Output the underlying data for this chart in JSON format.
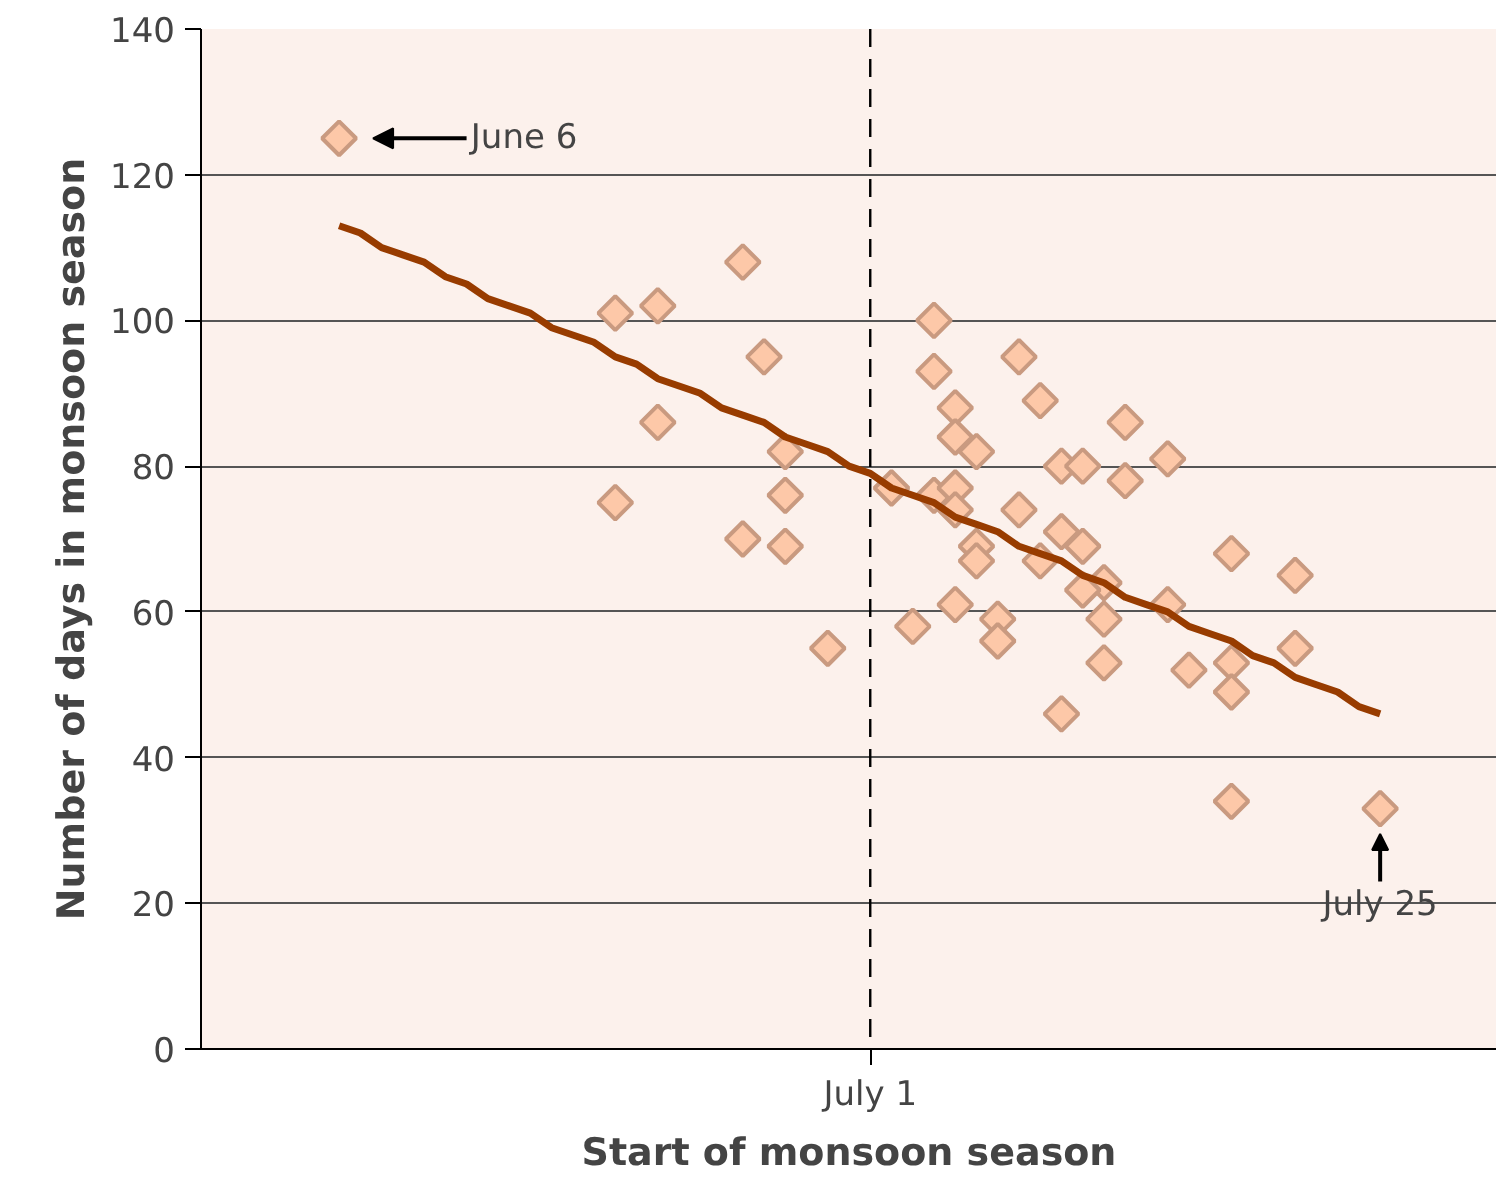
{
  "chart_data": {
    "type": "scatter",
    "xlabel": "Start of monsoon season",
    "ylabel": "Number of days in monsoon season",
    "categories": [
      null,
      null,
      null,
      null,
      null,
      null,
      null,
      null,
      null,
      null,
      null,
      null,
      null,
      null,
      null,
      null,
      null,
      null,
      null,
      null,
      null,
      null,
      null,
      null,
      null,
      null,
      null,
      null,
      null,
      null,
      null,
      "July 1",
      null,
      null,
      null,
      null,
      null,
      null,
      null,
      null,
      null,
      null,
      null,
      null,
      null,
      null,
      null,
      null,
      null,
      null,
      null,
      null,
      null,
      null,
      null,
      null,
      null,
      null,
      null,
      null,
      null
    ],
    "ylim": [
      0,
      140
    ],
    "yticks": [
      0,
      20,
      40,
      60,
      80,
      100,
      120,
      140
    ],
    "grid": "y",
    "marker": "diamond",
    "series": [
      {
        "color": "#fdc8a8",
        "values": [
          null,
          null,
          null,
          null,
          null,
          null,
          125,
          null,
          null,
          null,
          null,
          null,
          null,
          null,
          null,
          null,
          null,
          null,
          null,
          101,
          null,
          102,
          null,
          null,
          null,
          108,
          95,
          82,
          null,
          55,
          null,
          null,
          77,
          58,
          100,
          88,
          82,
          59,
          95,
          89,
          80,
          80,
          64,
          86,
          null,
          81,
          52,
          null,
          68,
          null,
          null,
          65,
          null,
          null,
          null,
          33,
          null,
          null,
          null,
          null,
          null
        ],
        "value_labels": [
          null,
          null,
          null,
          null,
          null,
          null,
          "June 6",
          null,
          null,
          null,
          null,
          null,
          null,
          null,
          null,
          null,
          null,
          null,
          null,
          null,
          null,
          null,
          null,
          null,
          null,
          null,
          null,
          null,
          null,
          null,
          null,
          null,
          null,
          null,
          null,
          null,
          null,
          null,
          null,
          null,
          null,
          null,
          null,
          null,
          null,
          null,
          null,
          null,
          null,
          null,
          null,
          null,
          null,
          null,
          null,
          "July 25",
          null,
          null,
          null,
          null,
          null
        ]
      },
      {
        "color": "#fdc8a8",
        "values": [
          null,
          null,
          null,
          null,
          null,
          null,
          null,
          null,
          null,
          null,
          null,
          null,
          null,
          null,
          null,
          null,
          null,
          null,
          null,
          75,
          null,
          86,
          null,
          null,
          null,
          70,
          null,
          76,
          null,
          null,
          null,
          null,
          null,
          null,
          93,
          84,
          69,
          56,
          74,
          67,
          71,
          69,
          59,
          78,
          null,
          61,
          null,
          null,
          53,
          null,
          null,
          55,
          null,
          null,
          null,
          null,
          null,
          null,
          null,
          null,
          null
        ]
      },
      {
        "color": "#fdc8a8",
        "values": [
          null,
          null,
          null,
          null,
          null,
          null,
          null,
          null,
          null,
          null,
          null,
          null,
          null,
          null,
          null,
          null,
          null,
          null,
          null,
          null,
          null,
          null,
          null,
          null,
          null,
          null,
          null,
          69,
          null,
          null,
          null,
          null,
          null,
          null,
          76,
          77,
          67,
          null,
          null,
          null,
          46,
          63,
          53,
          null,
          null,
          null,
          null,
          null,
          49,
          null,
          null,
          null,
          null,
          null,
          null,
          null,
          null,
          null,
          null,
          null,
          null
        ]
      },
      {
        "color": "#fdc8a8",
        "values": [
          null,
          null,
          null,
          null,
          null,
          null,
          null,
          null,
          null,
          null,
          null,
          null,
          null,
          null,
          null,
          null,
          null,
          null,
          null,
          null,
          null,
          null,
          null,
          null,
          null,
          null,
          null,
          null,
          null,
          null,
          null,
          null,
          null,
          null,
          null,
          74,
          null,
          null,
          null,
          null,
          null,
          null,
          null,
          null,
          null,
          null,
          null,
          null,
          34,
          null,
          null,
          null,
          null,
          null,
          null,
          null,
          null,
          null,
          null,
          null,
          null
        ]
      },
      {
        "color": "#fdc8a8",
        "values": [
          null,
          null,
          null,
          null,
          null,
          null,
          null,
          null,
          null,
          null,
          null,
          null,
          null,
          null,
          null,
          null,
          null,
          null,
          null,
          null,
          null,
          null,
          null,
          null,
          null,
          null,
          null,
          null,
          null,
          null,
          null,
          null,
          null,
          null,
          null,
          61,
          null,
          null,
          null,
          null,
          null,
          null,
          null,
          null,
          null,
          null,
          null,
          null,
          null,
          null,
          null,
          null,
          null,
          null,
          null,
          null,
          null,
          null,
          null,
          null,
          null
        ]
      },
      {
        "type": "line",
        "marker": "none",
        "color": "#983c00",
        "values": [
          null,
          null,
          null,
          null,
          null,
          null,
          113,
          112,
          110,
          109,
          108,
          106,
          105,
          103,
          102,
          101,
          99,
          98,
          97,
          95,
          94,
          92,
          91,
          90,
          88,
          87,
          86,
          84,
          83,
          82,
          80,
          79,
          77,
          76,
          75,
          73,
          72,
          71,
          69,
          68,
          67,
          65,
          64,
          62,
          61,
          60,
          58,
          57,
          56,
          54,
          53,
          51,
          50,
          49,
          47,
          46,
          null,
          null,
          null,
          null,
          null
        ]
      }
    ],
    "ref_lines": [
      {
        "axis": "x",
        "value": "July 1",
        "color": "#000000",
        "line_style": "dashed"
      }
    ]
  }
}
